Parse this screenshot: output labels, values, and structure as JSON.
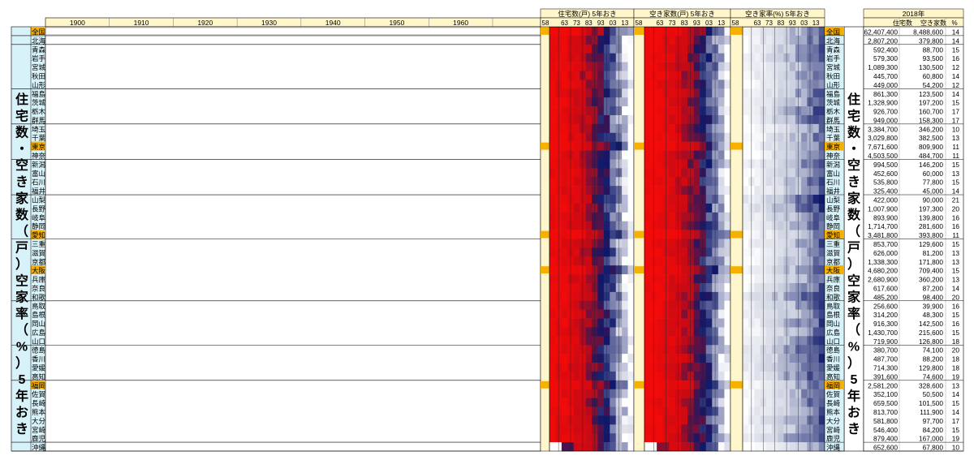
{
  "decades": [
    "1900",
    "1910",
    "1920",
    "1930",
    "1940",
    "1950",
    "1960"
  ],
  "side_title": [
    "住",
    "宅",
    "数",
    "・",
    "空",
    "き",
    "家",
    "数",
    "（",
    "戸",
    "）",
    "空",
    "家",
    "率",
    "（",
    "%",
    "）",
    "5",
    "年",
    "お",
    "き"
  ],
  "heatmap_titles": [
    "住宅数(戸) 5年おき",
    "空き家数(戸) 5年おき",
    "空き家率(%) 5年おき"
  ],
  "heatmap_year_labels": [
    "58",
    "63",
    "73",
    "83",
    "93",
    "03",
    "13"
  ],
  "summary": {
    "title": "2018年",
    "col_houses": "住宅数",
    "col_vacant": "空き家数",
    "col_rate": "%"
  },
  "colors": {
    "highlight": "#f5b000",
    "label_bg": "#d8f2fa",
    "header_bg": "#fff6cc",
    "heat_high": "#e80000",
    "heat_mid": "#0a1a70",
    "heat_low": "#ffffff"
  },
  "chart_data": {
    "type": "heatmap",
    "years": [
      "58",
      "63",
      "73",
      "83",
      "93",
      "03",
      "13"
    ],
    "series": [
      "住宅数(戸)",
      "空き家数(戸)",
      "空き家率(%)"
    ],
    "rows": [
      {
        "name": "全国",
        "houses": "62,407,400",
        "vacant": "8,488,600",
        "rate": "14",
        "highlight": true,
        "group_end": true
      },
      {
        "name": "北海",
        "houses": "2,807,200",
        "vacant": "379,800",
        "rate": "14",
        "group_end": true
      },
      {
        "name": "青森",
        "houses": "592,400",
        "vacant": "88,700",
        "rate": "15"
      },
      {
        "name": "岩手",
        "houses": "579,300",
        "vacant": "93,500",
        "rate": "16"
      },
      {
        "name": "宮城",
        "houses": "1,089,300",
        "vacant": "130,500",
        "rate": "12"
      },
      {
        "name": "秋田",
        "houses": "445,700",
        "vacant": "60,800",
        "rate": "14"
      },
      {
        "name": "山形",
        "houses": "449,000",
        "vacant": "54,200",
        "rate": "12",
        "group_end": true
      },
      {
        "name": "福島",
        "houses": "861,300",
        "vacant": "123,500",
        "rate": "14"
      },
      {
        "name": "茨城",
        "houses": "1,328,900",
        "vacant": "197,200",
        "rate": "15"
      },
      {
        "name": "栃木",
        "houses": "926,700",
        "vacant": "160,700",
        "rate": "17"
      },
      {
        "name": "群馬",
        "houses": "949,000",
        "vacant": "158,300",
        "rate": "17",
        "group_end": true
      },
      {
        "name": "埼玉",
        "houses": "3,384,700",
        "vacant": "346,200",
        "rate": "10"
      },
      {
        "name": "千葉",
        "houses": "3,029,800",
        "vacant": "382,500",
        "rate": "13"
      },
      {
        "name": "東京",
        "houses": "7,671,600",
        "vacant": "809,900",
        "rate": "11",
        "highlight": true
      },
      {
        "name": "神奈",
        "houses": "4,503,500",
        "vacant": "484,700",
        "rate": "11",
        "group_end": true
      },
      {
        "name": "新潟",
        "houses": "994,500",
        "vacant": "146,200",
        "rate": "15"
      },
      {
        "name": "富山",
        "houses": "452,600",
        "vacant": "60,000",
        "rate": "13"
      },
      {
        "name": "石川",
        "houses": "535,800",
        "vacant": "77,800",
        "rate": "15"
      },
      {
        "name": "福井",
        "houses": "325,400",
        "vacant": "45,000",
        "rate": "14",
        "group_end": true
      },
      {
        "name": "山梨",
        "houses": "422,000",
        "vacant": "90,000",
        "rate": "21"
      },
      {
        "name": "長野",
        "houses": "1,007,900",
        "vacant": "197,300",
        "rate": "20"
      },
      {
        "name": "岐阜",
        "houses": "893,900",
        "vacant": "139,800",
        "rate": "16"
      },
      {
        "name": "静岡",
        "houses": "1,714,700",
        "vacant": "281,600",
        "rate": "16"
      },
      {
        "name": "愛知",
        "houses": "3,481,800",
        "vacant": "393,800",
        "rate": "11",
        "highlight": true,
        "group_end": true
      },
      {
        "name": "三重",
        "houses": "853,700",
        "vacant": "129,600",
        "rate": "15"
      },
      {
        "name": "滋賀",
        "houses": "626,000",
        "vacant": "81,200",
        "rate": "13"
      },
      {
        "name": "京都",
        "houses": "1,338,300",
        "vacant": "171,800",
        "rate": "13"
      },
      {
        "name": "大阪",
        "houses": "4,680,200",
        "vacant": "709,400",
        "rate": "15",
        "highlight": true
      },
      {
        "name": "兵庫",
        "houses": "2,680,900",
        "vacant": "360,200",
        "rate": "13"
      },
      {
        "name": "奈良",
        "houses": "617,600",
        "vacant": "87,200",
        "rate": "14"
      },
      {
        "name": "和歌",
        "houses": "485,200",
        "vacant": "98,400",
        "rate": "20",
        "group_end": true
      },
      {
        "name": "鳥取",
        "houses": "256,600",
        "vacant": "39,900",
        "rate": "16"
      },
      {
        "name": "島根",
        "houses": "314,200",
        "vacant": "48,300",
        "rate": "15"
      },
      {
        "name": "岡山",
        "houses": "916,300",
        "vacant": "142,500",
        "rate": "16"
      },
      {
        "name": "広島",
        "houses": "1,430,700",
        "vacant": "215,600",
        "rate": "15"
      },
      {
        "name": "山口",
        "houses": "719,900",
        "vacant": "126,800",
        "rate": "18",
        "group_end": true
      },
      {
        "name": "徳島",
        "houses": "380,700",
        "vacant": "74,100",
        "rate": "20"
      },
      {
        "name": "香川",
        "houses": "487,700",
        "vacant": "88,200",
        "rate": "18"
      },
      {
        "name": "愛媛",
        "houses": "714,300",
        "vacant": "129,800",
        "rate": "18"
      },
      {
        "name": "高知",
        "houses": "391,600",
        "vacant": "74,600",
        "rate": "19",
        "group_end": true
      },
      {
        "name": "福岡",
        "houses": "2,581,200",
        "vacant": "328,600",
        "rate": "13",
        "highlight": true
      },
      {
        "name": "佐賀",
        "houses": "352,100",
        "vacant": "50,500",
        "rate": "14"
      },
      {
        "name": "長崎",
        "houses": "659,500",
        "vacant": "101,500",
        "rate": "15"
      },
      {
        "name": "熊本",
        "houses": "813,700",
        "vacant": "111,900",
        "rate": "14"
      },
      {
        "name": "大分",
        "houses": "581,800",
        "vacant": "97,700",
        "rate": "17"
      },
      {
        "name": "宮崎",
        "houses": "546,400",
        "vacant": "84,200",
        "rate": "15"
      },
      {
        "name": "鹿児",
        "houses": "879,400",
        "vacant": "167,000",
        "rate": "19",
        "group_end": true
      },
      {
        "name": "沖縄",
        "houses": "652,600",
        "vacant": "67,800",
        "rate": "10",
        "group_end": true
      }
    ]
  }
}
